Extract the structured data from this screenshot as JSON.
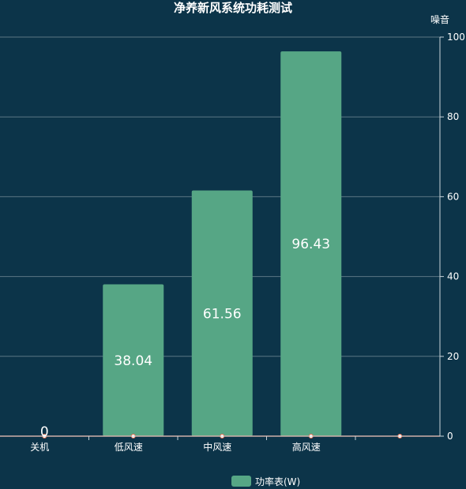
{
  "chart_data": {
    "type": "bar",
    "title": "净养新风系统功耗测试",
    "categories": [
      "关机",
      "低风速",
      "中风速",
      "高风速",
      ""
    ],
    "series": [
      {
        "name": "功率表(W)",
        "values": [
          0,
          38.04,
          61.56,
          96.43,
          null
        ],
        "value_labels": [
          "0",
          "38.04",
          "61.56",
          "96.43",
          ""
        ],
        "color": "#56a685"
      },
      {
        "name": "",
        "type": "line",
        "values": [
          0,
          0,
          0,
          0,
          0
        ],
        "color": "#e06a4a"
      }
    ],
    "y_axis": {
      "name": "噪音",
      "position": "right",
      "min": 0,
      "max": 100,
      "ticks": [
        "0",
        "20",
        "40",
        "60",
        "80",
        "100"
      ]
    },
    "grid": true,
    "legend": {
      "position": "bottom-center",
      "items": [
        "功率表(W)"
      ]
    },
    "colors": {
      "background": "#0c3449",
      "bar": "#56a685",
      "line": "#e06a4a",
      "text": "#ffffff"
    }
  }
}
